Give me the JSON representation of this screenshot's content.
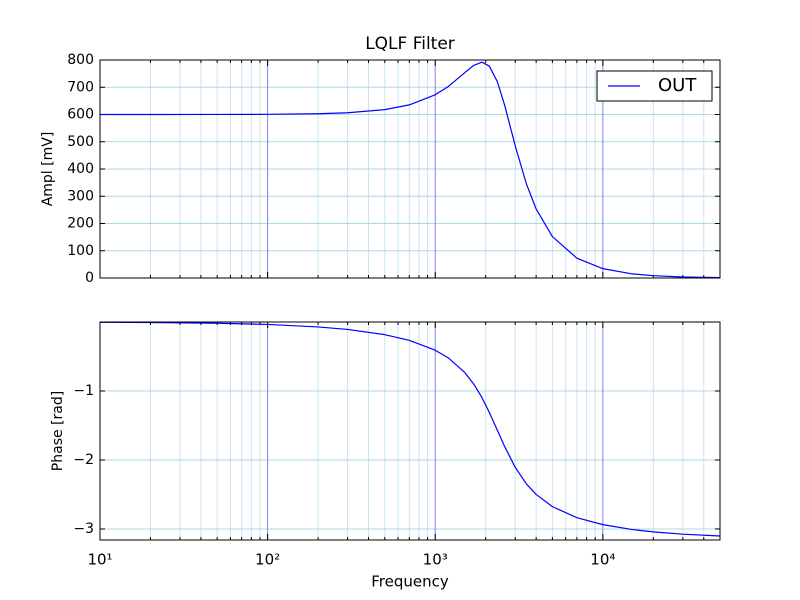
{
  "chart_data": [
    {
      "type": "line",
      "title": "LQLF Filter",
      "y_label": "Ampl [mV]",
      "xscale": "log",
      "grid": true,
      "legend": "upper right",
      "x": [
        10,
        20,
        50,
        100,
        200,
        300,
        500,
        700,
        1000,
        1200,
        1500,
        1700,
        1900,
        2100,
        2350,
        2600,
        3000,
        3500,
        4000,
        5000,
        7000,
        10000,
        15000,
        20000,
        30000,
        50000
      ],
      "series": [
        {
          "name": "OUT",
          "color": "#0000ff",
          "values": [
            600,
            600,
            600.2,
            600.7,
            602.8,
            606.4,
            617.9,
            635.3,
            672.3,
            703.4,
            753.5,
            780.7,
            792.0,
            777.8,
            720.0,
            632.4,
            485.4,
            345.0,
            253.3,
            152.0,
            72.7,
            34.3,
            15.0,
            8.4,
            3.7,
            1.3
          ]
        }
      ],
      "xlim": [
        10,
        50000
      ],
      "xticks": [
        10,
        100,
        1000,
        10000
      ],
      "ylim": [
        0,
        800
      ],
      "yticks": [
        0,
        100,
        200,
        300,
        400,
        500,
        600,
        700,
        800
      ]
    },
    {
      "type": "line",
      "x_label": "Frequency",
      "y_label": "Phase [rad]",
      "xscale": "log",
      "grid": true,
      "x": [
        10,
        20,
        50,
        100,
        200,
        300,
        500,
        700,
        1000,
        1200,
        1500,
        1700,
        1900,
        2100,
        2350,
        2600,
        3000,
        3500,
        4000,
        5000,
        7000,
        10000,
        15000,
        20000,
        30000,
        50000
      ],
      "series": [
        {
          "name": "OUT",
          "color": "#0000ff",
          "values": [
            -0.0035,
            -0.0071,
            -0.0177,
            -0.0355,
            -0.0713,
            -0.1077,
            -0.1836,
            -0.266,
            -0.4089,
            -0.5222,
            -0.7315,
            -0.9018,
            -1.0959,
            -1.3078,
            -1.5708,
            -1.8093,
            -2.1053,
            -2.3469,
            -2.4997,
            -2.6761,
            -2.8362,
            -2.9372,
            -3.0085,
            -3.0426,
            -3.076,
            -3.1024
          ]
        }
      ],
      "xlim": [
        10,
        50000
      ],
      "xticks": [
        {
          "value": 10,
          "label": "10¹"
        },
        {
          "value": 100,
          "label": "10²"
        },
        {
          "value": 1000,
          "label": "10³"
        },
        {
          "value": 10000,
          "label": "10⁴"
        }
      ],
      "ylim": [
        -3.16,
        0
      ],
      "yticks": [
        {
          "value": -3,
          "label": "−3"
        },
        {
          "value": -2,
          "label": "−2"
        },
        {
          "value": -1,
          "label": "−1"
        }
      ]
    }
  ]
}
